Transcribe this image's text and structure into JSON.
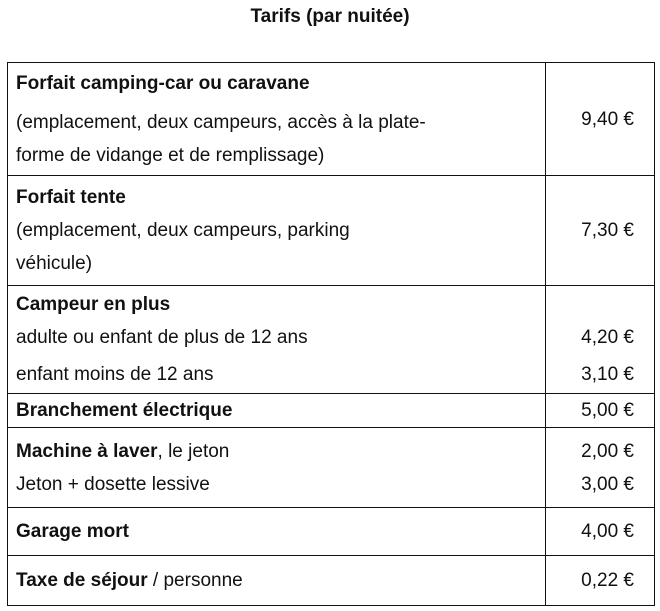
{
  "title": "Tarifs (par nuitée)",
  "rows": [
    {
      "heading": "Forfait camping-car ou caravane",
      "lines": [
        "(emplacement, deux campeurs, accès à la plate-",
        "forme de vidange et de remplissage)"
      ],
      "price": "9,40 €"
    },
    {
      "heading": "Forfait tente",
      "lines": [
        "(emplacement, deux campeurs, parking",
        "véhicule)"
      ],
      "price": "7,30 €"
    },
    {
      "heading": "Campeur en plus",
      "items": [
        {
          "label": "adulte ou enfant de plus de 12 ans",
          "price": "4,20 €"
        },
        {
          "label": "enfant moins de 12 ans",
          "price": "3,10 €"
        }
      ]
    },
    {
      "heading": "Branchement électrique",
      "price": "5,00 €"
    },
    {
      "heading": "Machine à laver",
      "suffix": ", le jeton",
      "price": "2,00 €",
      "items": [
        {
          "label": "Jeton + dosette lessive",
          "price": "3,00 €"
        }
      ]
    },
    {
      "heading": "Garage mort",
      "price": "4,00 €"
    },
    {
      "heading": "Taxe de séjour",
      "suffix": " / personne",
      "price": "0,22 €"
    }
  ]
}
